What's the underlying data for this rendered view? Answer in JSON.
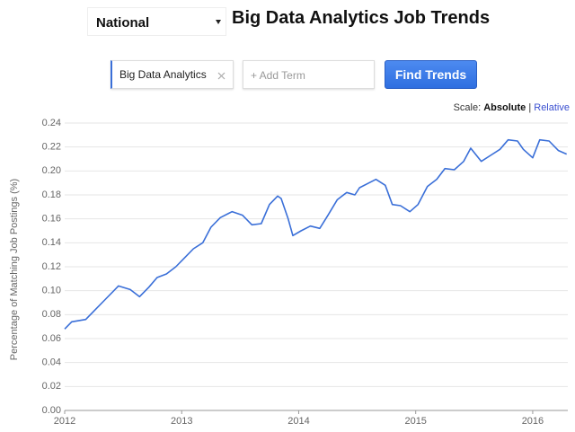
{
  "ui": {
    "location": "National",
    "title": "Big Data Analytics Job Trends",
    "term": "Big Data Analytics",
    "add_term": "+ Add Term",
    "button": "Find Trends",
    "scale_label": "Scale:",
    "scale_absolute": "Absolute",
    "scale_sep": "|",
    "scale_relative": "Relative"
  },
  "chart_data": {
    "type": "line",
    "y_label": "Percentage of Matching Job Postings (%)",
    "x": [
      2012.0,
      2012.06,
      2012.18,
      2012.25,
      2012.35,
      2012.46,
      2012.56,
      2012.64,
      2012.72,
      2012.79,
      2012.87,
      2012.95,
      2013.02,
      2013.1,
      2013.18,
      2013.25,
      2013.33,
      2013.43,
      2013.52,
      2013.6,
      2013.68,
      2013.75,
      2013.82,
      2013.85,
      2013.91,
      2013.95,
      2014.02,
      2014.1,
      2014.18,
      2014.25,
      2014.33,
      2014.41,
      2014.48,
      2014.52,
      2014.6,
      2014.66,
      2014.74,
      2014.8,
      2014.87,
      2014.95,
      2015.02,
      2015.1,
      2015.18,
      2015.25,
      2015.33,
      2015.41,
      2015.47,
      2015.56,
      2015.64,
      2015.72,
      2015.79,
      2015.87,
      2015.92,
      2016.0,
      2016.06,
      2016.14,
      2016.22,
      2016.29
    ],
    "values": [
      0.068,
      0.074,
      0.076,
      0.083,
      0.093,
      0.104,
      0.101,
      0.095,
      0.103,
      0.111,
      0.114,
      0.12,
      0.127,
      0.135,
      0.14,
      0.153,
      0.161,
      0.166,
      0.163,
      0.155,
      0.156,
      0.172,
      0.179,
      0.177,
      0.16,
      0.146,
      0.15,
      0.154,
      0.152,
      0.163,
      0.176,
      0.182,
      0.18,
      0.186,
      0.19,
      0.193,
      0.188,
      0.172,
      0.171,
      0.166,
      0.172,
      0.187,
      0.193,
      0.202,
      0.201,
      0.208,
      0.219,
      0.208,
      0.213,
      0.218,
      0.226,
      0.225,
      0.218,
      0.211,
      0.226,
      0.225,
      0.217,
      0.214
    ],
    "color": "#3a6fd8",
    "xlim": [
      2012,
      2016.3
    ],
    "xticks": [
      2012,
      2013,
      2014,
      2015,
      2016
    ],
    "ylim": [
      0,
      0.24
    ],
    "yticks": [
      {
        "value": 0,
        "label": "0.00"
      },
      0.02,
      0.04,
      0.06,
      0.08,
      {
        "value": 0.1,
        "label": "0.10"
      },
      0.12,
      0.14,
      0.16,
      0.18,
      {
        "value": 0.2,
        "label": "0.20"
      },
      0.22,
      0.24
    ],
    "grid": true
  }
}
